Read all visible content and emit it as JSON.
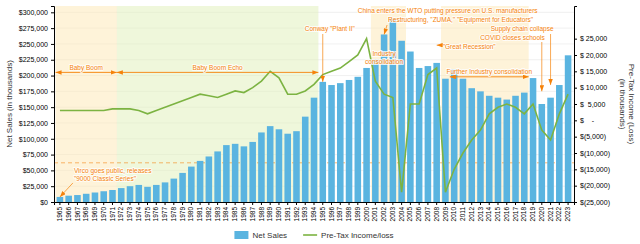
{
  "chart_data": {
    "type": "bar",
    "categories": [
      "1965",
      "1966",
      "1967",
      "1968",
      "1969",
      "1970",
      "1971",
      "1972",
      "1973",
      "1974",
      "1975",
      "1976",
      "1977",
      "1978",
      "1979",
      "1980",
      "1981",
      "1982",
      "1983",
      "1984",
      "1985",
      "1986",
      "1987",
      "1988",
      "1989",
      "1990",
      "1991",
      "1992",
      "1993",
      "1994",
      "1995",
      "1996",
      "1997",
      "1998",
      "1999",
      "2000",
      "2001",
      "2002",
      "2003",
      "2004",
      "2005",
      "2006",
      "2007",
      "2008",
      "2009",
      "2010",
      "2011",
      "2012",
      "2013",
      "2014",
      "2015",
      "2016",
      "2017",
      "2018",
      "2019",
      "2020",
      "2021",
      "2022",
      "2023"
    ],
    "series": [
      {
        "name": "Net Sales",
        "type": "bar",
        "color": "#5ab4e0",
        "values": [
          8000,
          10000,
          11000,
          13000,
          15000,
          17000,
          19000,
          22000,
          25000,
          27000,
          24000,
          27000,
          31000,
          37000,
          46000,
          56000,
          65000,
          72000,
          80000,
          90000,
          92000,
          88000,
          95000,
          110000,
          120000,
          115000,
          108000,
          112000,
          135000,
          165000,
          190000,
          185000,
          188000,
          193000,
          198000,
          212000,
          225000,
          265000,
          290000,
          255000,
          238000,
          212000,
          215000,
          220000,
          195000,
          210000,
          195000,
          180000,
          175000,
          168000,
          165000,
          162000,
          168000,
          173000,
          196000,
          155000,
          165000,
          185000,
          232000
        ]
      },
      {
        "name": "Pre-Tax Income/loss",
        "type": "line",
        "color": "#7cb342",
        "axis": "y2",
        "values": [
          3000,
          3000,
          3000,
          3000,
          3000,
          3000,
          3500,
          3500,
          3500,
          3000,
          2000,
          3000,
          4000,
          5000,
          6000,
          7000,
          8000,
          7500,
          7000,
          8000,
          9000,
          8500,
          10000,
          12000,
          15000,
          13000,
          8000,
          8000,
          9000,
          11000,
          14000,
          15000,
          16000,
          18000,
          20000,
          25000,
          12000,
          8000,
          7000,
          -22000,
          5000,
          5000,
          14000,
          16000,
          -22000,
          -15000,
          -10000,
          -6000,
          -3000,
          2000,
          4000,
          5000,
          4000,
          2000,
          5000,
          -3000,
          -6000,
          2000,
          8000
        ]
      }
    ],
    "ylabel": "Net Sales (in thousands)",
    "y2label": "Pre-Tax Income (Loss)\n(in thousands)",
    "ylim": [
      0,
      310000
    ],
    "yticks": [
      {
        "value": 0,
        "label": "$0"
      },
      {
        "value": 25000,
        "label": "$25,000"
      },
      {
        "value": 50000,
        "label": "$50,000"
      },
      {
        "value": 75000,
        "label": "$75,000"
      },
      {
        "value": 100000,
        "label": "$100,000"
      },
      {
        "value": 125000,
        "label": "$125,000"
      },
      {
        "value": 150000,
        "label": "$150,000"
      },
      {
        "value": 175000,
        "label": "$175,000"
      },
      {
        "value": 200000,
        "label": "$200,000"
      },
      {
        "value": 225000,
        "label": "$225,000"
      },
      {
        "value": 250000,
        "label": "$250,000"
      },
      {
        "value": 275000,
        "label": "$275,000"
      },
      {
        "value": 300000,
        "label": "$300,000"
      }
    ],
    "y2lim": [
      -25000,
      35000
    ],
    "y2ticks": [
      {
        "value": -25000,
        "label": "$(25,000)"
      },
      {
        "value": -20000,
        "label": "$(20,000)"
      },
      {
        "value": -15000,
        "label": "$(15,000)"
      },
      {
        "value": -10000,
        "label": "$(10,000)"
      },
      {
        "value": -5000,
        "label": "$(5,000)"
      },
      {
        "value": 0,
        "label": "$    -"
      },
      {
        "value": 5000,
        "label": "$  5,000"
      },
      {
        "value": 10000,
        "label": "$ 10,000"
      },
      {
        "value": 15000,
        "label": "$ 15,000"
      },
      {
        "value": 20000,
        "label": "$ 20,000"
      },
      {
        "value": 25000,
        "label": "$ 25,000"
      }
    ],
    "grid": true,
    "legend": "bottom",
    "spans": [
      {
        "from": "1965",
        "to": "1971",
        "color": "#fde8b4"
      },
      {
        "from": "1972",
        "to": "1994",
        "color": "#dff0b8"
      },
      {
        "from": "2001",
        "to": "2004",
        "color": "#fde8b4"
      },
      {
        "from": "2009",
        "to": "2018",
        "color": "#fde8b4"
      }
    ],
    "annotations": [
      {
        "y": 62000,
        "line_style": "dashed",
        "color": "#f5820a"
      },
      {
        "text": "Baby Boom",
        "from": "1965",
        "to": "1971",
        "y": 205000,
        "color": "#f5820a"
      },
      {
        "text": "Baby Boom Echo",
        "from": "1972",
        "to": "1994",
        "y": 205000,
        "color": "#f5820a"
      },
      {
        "text": "Virco goes public, releases\n\"9000 Classic Series\"",
        "xy": [
          "1965",
          8000
        ],
        "color": "#f5820a"
      },
      {
        "text": "Conway \"Plant II\"",
        "xy": [
          "1995",
          190000
        ],
        "color": "#f5820a"
      },
      {
        "text": "China enters the WTO putting pressure on U.S. manufacturers",
        "xy": [
          "1999",
          295000
        ],
        "color": "#f5820a"
      },
      {
        "text": "Restructuring, \"ZUMA,\" \"Equipment for Educators\"",
        "xy": [
          "2002",
          265000
        ],
        "color": "#f5820a"
      },
      {
        "text": "Industry\nconsolidation",
        "x": "2002",
        "y": 240000,
        "color": "#f5820a"
      },
      {
        "text": "\"Great Recession\"",
        "xy": [
          "2008",
          248000
        ],
        "color": "#f5820a"
      },
      {
        "text": "Further Industry consolidation",
        "from": "2010",
        "to": "2018",
        "y": 198000,
        "color": "#f5820a"
      },
      {
        "text": "COVID closes schools",
        "xy": [
          "2020",
          175000
        ],
        "color": "#f5820a"
      },
      {
        "text": "Supply chain collapse",
        "xy": [
          "2021",
          185000
        ],
        "color": "#f5820a"
      }
    ]
  }
}
